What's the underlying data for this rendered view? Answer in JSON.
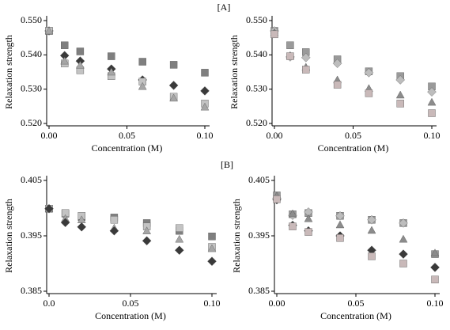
{
  "chart_data": [
    {
      "type": "scatter",
      "annotation": "[A]",
      "xlabel": "Concentration (M)",
      "ylabel": "Relaxation strength",
      "x": [
        0,
        0.01,
        0.02,
        0.04,
        0.06,
        0.08,
        0.1
      ],
      "xlim": [
        0,
        0.1
      ],
      "xticks": [
        {
          "value": 0,
          "label": "0.00"
        },
        0.05,
        {
          "value": 0.1,
          "label": "0.10"
        }
      ],
      "ylim": [
        0.52,
        0.55
      ],
      "yticks": [
        {
          "value": 0.52,
          "label": "0.520"
        },
        {
          "value": 0.53,
          "label": "0.530"
        },
        {
          "value": 0.54,
          "label": "0.540"
        },
        {
          "value": 0.55,
          "label": "0.550"
        }
      ],
      "series": [
        {
          "marker": "square",
          "color": "#7f7f7f",
          "values": [
            0.547,
            0.5428,
            0.541,
            0.5396,
            0.538,
            0.5371,
            0.5348
          ]
        },
        {
          "marker": "diamond",
          "color": "#3a3a3a",
          "values": [
            0.547,
            0.5398,
            0.5382,
            0.5359,
            0.5327,
            0.5311,
            0.5295
          ]
        },
        {
          "marker": "square",
          "color": "#c3c3c3",
          "values": [
            0.547,
            0.5375,
            0.5355,
            0.5338,
            0.5322,
            0.5278,
            0.5258
          ]
        },
        {
          "marker": "triangle",
          "color": "#a6a6a6",
          "values": [
            0.547,
            0.5382,
            0.537,
            0.535,
            0.5308,
            0.5274,
            0.5248
          ]
        }
      ]
    },
    {
      "type": "scatter",
      "xlabel": "Concentration (M)",
      "ylabel": "Relaxation strength",
      "x": [
        0,
        0.01,
        0.02,
        0.04,
        0.06,
        0.08,
        0.1
      ],
      "xlim": [
        0,
        0.1
      ],
      "xticks": [
        {
          "value": 0,
          "label": "0.00"
        },
        0.05,
        {
          "value": 0.1,
          "label": "0.10"
        }
      ],
      "ylim": [
        0.52,
        0.55
      ],
      "yticks": [
        {
          "value": 0.52,
          "label": "0.520"
        },
        {
          "value": 0.53,
          "label": "0.530"
        },
        {
          "value": 0.54,
          "label": "0.540"
        },
        {
          "value": 0.55,
          "label": "0.550"
        }
      ],
      "series": [
        {
          "marker": "square",
          "color": "#9a9a9a",
          "values": [
            0.547,
            0.5428,
            0.5408,
            0.5387,
            0.5352,
            0.5338,
            0.5308
          ]
        },
        {
          "marker": "diamond",
          "color": "#bdbdbd",
          "values": [
            0.547,
            0.5394,
            0.5392,
            0.5375,
            0.5348,
            0.5327,
            0.5292
          ]
        },
        {
          "marker": "triangle",
          "color": "#8c8c8c",
          "values": [
            0.5465,
            0.5398,
            0.5364,
            0.5327,
            0.5302,
            0.5283,
            0.5262
          ]
        },
        {
          "marker": "square",
          "color": "#c9b9b9",
          "values": [
            0.546,
            0.5396,
            0.5357,
            0.5313,
            0.5288,
            0.5258,
            0.523
          ]
        }
      ]
    },
    {
      "type": "scatter",
      "annotation": "[B]",
      "xlabel": "Concentration (M)",
      "ylabel": "Relaxation strength",
      "x": [
        0,
        0.01,
        0.02,
        0.04,
        0.06,
        0.08,
        0.1
      ],
      "xlim": [
        0,
        0.1
      ],
      "xticks": [
        {
          "value": 0,
          "label": "0.0"
        },
        0.05,
        {
          "value": 0.1,
          "label": "0.10"
        }
      ],
      "ylim": [
        0.385,
        0.405
      ],
      "yticks": [
        0.385,
        0.395,
        0.405
      ],
      "series": [
        {
          "marker": "square",
          "color": "#7f7f7f",
          "values": [
            0.3999,
            0.399,
            0.3984,
            0.3983,
            0.3973,
            0.3959,
            0.3949
          ]
        },
        {
          "marker": "square",
          "color": "#c3c3c3",
          "values": [
            0.3999,
            0.3991,
            0.3986,
            0.3979,
            0.3967,
            0.3964,
            0.393
          ]
        },
        {
          "marker": "triangle",
          "color": "#a6a6a6",
          "values": [
            0.3999,
            0.3981,
            0.3979,
            0.3964,
            0.3959,
            0.3944,
            0.3927
          ]
        },
        {
          "marker": "diamond",
          "color": "#3a3a3a",
          "values": [
            0.3999,
            0.3974,
            0.3966,
            0.3959,
            0.3941,
            0.3924,
            0.3904
          ]
        }
      ]
    },
    {
      "type": "scatter",
      "xlabel": "Concentration (M)",
      "ylabel": "Relaxation strength",
      "x": [
        0,
        0.01,
        0.02,
        0.04,
        0.06,
        0.08,
        0.1
      ],
      "xlim": [
        0,
        0.1
      ],
      "xticks": [
        {
          "value": 0,
          "label": "0.00"
        },
        0.05,
        {
          "value": 0.1,
          "label": "0.10"
        }
      ],
      "ylim": [
        0.385,
        0.405
      ],
      "yticks": [
        0.385,
        0.395,
        0.405
      ],
      "series": [
        {
          "marker": "square",
          "color": "#9a9a9a",
          "values": [
            0.4023,
            0.3989,
            0.3991,
            0.3986,
            0.3979,
            0.3973,
            0.3917
          ]
        },
        {
          "marker": "diamond",
          "color": "#bdbdbd",
          "values": [
            0.4018,
            0.3987,
            0.3993,
            0.3986,
            0.3979,
            0.3973,
            0.3893
          ]
        },
        {
          "marker": "triangle",
          "color": "#8c8c8c",
          "values": [
            0.4022,
            0.399,
            0.3981,
            0.397,
            0.396,
            0.3944,
            0.3919
          ]
        },
        {
          "marker": "diamond",
          "color": "#3a3a3a",
          "values": [
            0.4015,
            0.3969,
            0.3959,
            0.395,
            0.3924,
            0.3917,
            0.3893
          ]
        },
        {
          "marker": "square",
          "color": "#c9b9b9",
          "values": [
            0.4016,
            0.3967,
            0.3957,
            0.3946,
            0.3913,
            0.39,
            0.3871
          ]
        }
      ]
    }
  ]
}
